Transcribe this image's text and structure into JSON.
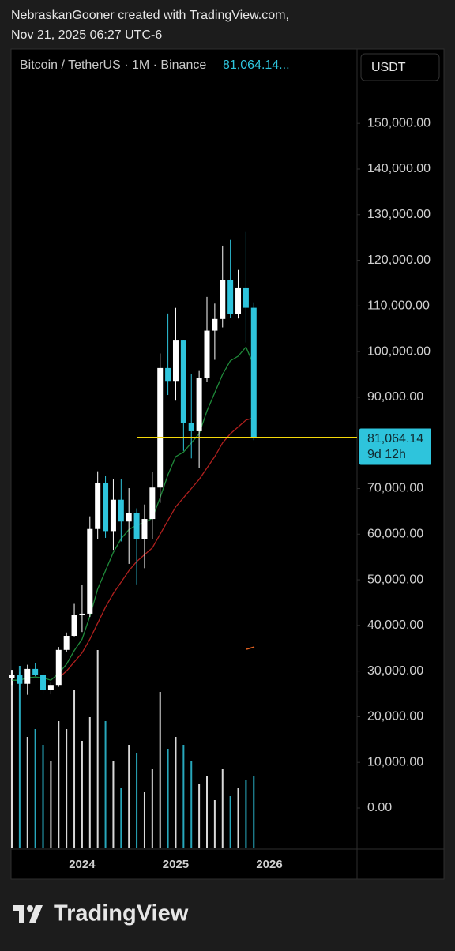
{
  "header": {
    "attribution": "NebraskanGooner created with TradingView.com,",
    "timestamp": "Nov 21, 2025 06:27 UTC-6"
  },
  "chart_data": {
    "type": "candlestick",
    "title": "Bitcoin / TetherUS · 1M · Binance",
    "currency": "USDT",
    "last_value": 81064.14,
    "last_value_label": "81,064.14...",
    "price_label": {
      "value": 81064.14,
      "label": "81,064.14"
    },
    "countdown": "9d 12h",
    "categories": [
      null,
      null,
      null,
      null,
      null,
      null,
      null,
      null,
      null,
      "2024",
      null,
      null,
      null,
      null,
      null,
      null,
      null,
      null,
      null,
      null,
      null,
      "2025",
      null,
      null,
      null,
      null,
      null,
      null,
      null,
      null,
      null,
      null,
      null,
      "2026"
    ],
    "open": [
      28478,
      29233,
      27210,
      30472,
      29232,
      25940,
      26962,
      34639,
      37723,
      42283,
      42580,
      61130,
      71280,
      60672,
      67540,
      62772,
      64628,
      58974,
      63327,
      70215,
      96407,
      93577,
      102430,
      84350,
      82550,
      94172,
      104591,
      107146,
      115764,
      108246,
      114049,
      109608,
      null,
      null
    ],
    "high": [
      30000,
      29820,
      31389,
      31804,
      30190,
      27483,
      35280,
      38450,
      44729,
      48969,
      63913,
      73777,
      72797,
      71979,
      71997,
      70079,
      65660,
      66498,
      73620,
      99588,
      108353,
      109588,
      102500,
      95000,
      95758,
      111980,
      110530,
      123218,
      124474,
      117900,
      126199,
      110796,
      null,
      null
    ],
    "low": [
      26942,
      25811,
      24800,
      28861,
      25166,
      24901,
      26535,
      34097,
      37615,
      38555,
      41884,
      59005,
      59191,
      56552,
      58402,
      53485,
      49000,
      52550,
      58867,
      66835,
      90500,
      89256,
      78258,
      76606,
      74508,
      93377,
      98200,
      105295,
      107350,
      107255,
      102000,
      80600,
      null,
      null
    ],
    "close": [
      29233,
      27210,
      30472,
      29232,
      25940,
      26962,
      34639,
      37723,
      42283,
      42580,
      61130,
      71280,
      60672,
      67540,
      62772,
      64628,
      58974,
      63327,
      70215,
      96407,
      93577,
      102430,
      84350,
      82550,
      94172,
      104591,
      107146,
      115764,
      108246,
      114049,
      109608,
      81064.14,
      null,
      null
    ],
    "volume": [
      225,
      230,
      140,
      150,
      130,
      110,
      160,
      150,
      200,
      135,
      165,
      250,
      160,
      110,
      75,
      130,
      120,
      70,
      100,
      197,
      125,
      140,
      130,
      110,
      80,
      90,
      60,
      100,
      65,
      75,
      85,
      90,
      null,
      null
    ],
    "vlim": [
      0,
      300
    ],
    "up_color": "#ffffff",
    "down_color": "#2ec4dc",
    "ma": [
      {
        "color": "#1f8a3a",
        "values": [
          28000,
          28000,
          28500,
          28700,
          28500,
          28000,
          29500,
          31500,
          34500,
          37000,
          42000,
          48000,
          52000,
          56000,
          59000,
          61000,
          62000,
          62500,
          63500,
          68000,
          73000,
          77000,
          78000,
          80000,
          82000,
          87000,
          91000,
          95000,
          98000,
          99000,
          101000,
          97000,
          null,
          null
        ]
      },
      {
        "color": "#b0201e",
        "values": [
          null,
          null,
          null,
          null,
          null,
          null,
          28500,
          30000,
          32000,
          34000,
          37000,
          40500,
          44000,
          47000,
          49500,
          52000,
          54000,
          55500,
          57000,
          60000,
          63000,
          66000,
          68000,
          70000,
          72000,
          74500,
          77000,
          80000,
          82000,
          83500,
          85000,
          85500,
          null,
          null
        ]
      }
    ],
    "hline": {
      "value": 81200,
      "color": "#f5d90a"
    },
    "ylim": [
      -9000,
      166300
    ],
    "yticks": [
      {
        "value": 150000,
        "label": "150,000.00"
      },
      {
        "value": 140000,
        "label": "140,000.00"
      },
      {
        "value": 130000,
        "label": "130,000.00"
      },
      {
        "value": 120000,
        "label": "120,000.00"
      },
      {
        "value": 110000,
        "label": "110,000.00"
      },
      {
        "value": 100000,
        "label": "100,000.00"
      },
      {
        "value": 90000,
        "label": "90,000.00"
      },
      {
        "value": 70000,
        "label": "70,000.00"
      },
      {
        "value": 60000,
        "label": "60,000.00"
      },
      {
        "value": 50000,
        "label": "50,000.00"
      },
      {
        "value": 40000,
        "label": "40,000.00"
      },
      {
        "value": 30000,
        "label": "30,000.00"
      },
      {
        "value": 20000,
        "label": "20,000.00"
      },
      {
        "value": 10000,
        "label": "10,000.00"
      },
      {
        "value": 0,
        "label": "0.00"
      }
    ]
  },
  "footer": {
    "brand": "TradingView"
  }
}
